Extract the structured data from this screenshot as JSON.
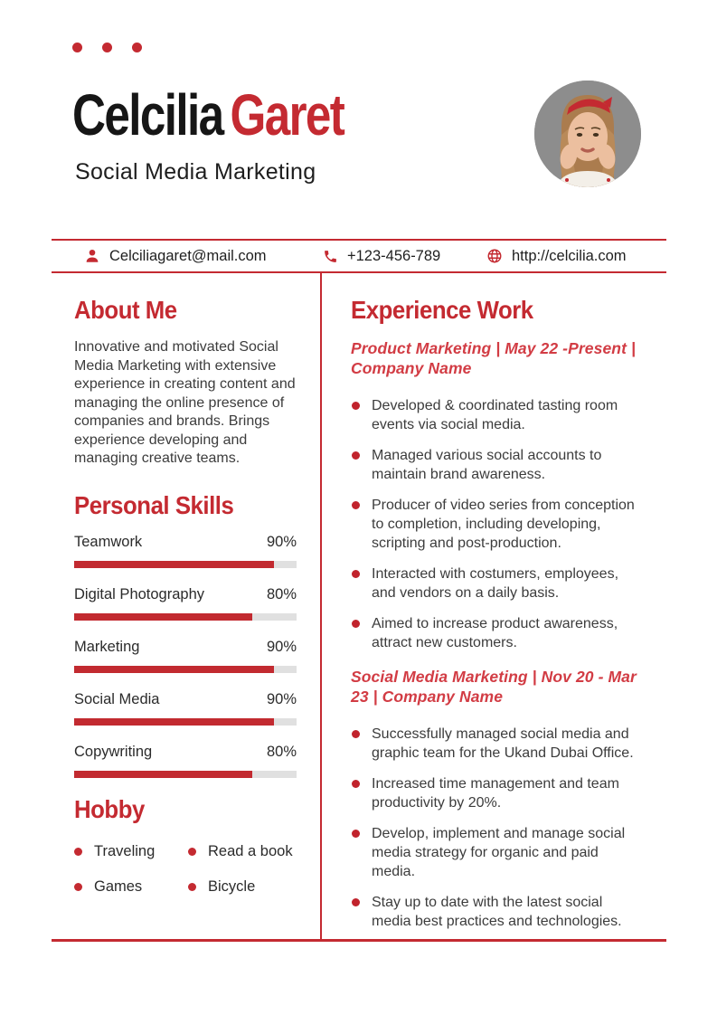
{
  "colors": {
    "accent": "#c42a31",
    "accent_italic": "#d23c44",
    "text_dark": "#1e1e1e",
    "text_body": "#3c3c3c",
    "bar_track": "#e0e0e0",
    "photo_background": "#8d8d8d"
  },
  "header": {
    "first_name": "Celcilia",
    "last_name": "Garet",
    "subtitle": "Social Media Marketing"
  },
  "contact": {
    "email": "Celciliagaret@mail.com",
    "phone": "+123-456-789",
    "website": "http://celcilia.com"
  },
  "about": {
    "title": "About Me",
    "text": "Innovative and motivated Social Media Marketing with extensive experience in creating content and managing the online presence of companies and brands. Brings experience developing and managing creative teams."
  },
  "skills": {
    "title": "Personal Skills",
    "items": [
      {
        "label": "Teamwork",
        "value": 90,
        "percent_label": "90%"
      },
      {
        "label": "Digital Photography",
        "value": 80,
        "percent_label": "80%"
      },
      {
        "label": "Marketing",
        "value": 90,
        "percent_label": "90%"
      },
      {
        "label": "Social Media",
        "value": 90,
        "percent_label": "90%"
      },
      {
        "label": "Copywriting",
        "value": 80,
        "percent_label": "80%"
      }
    ]
  },
  "hobby": {
    "title": "Hobby",
    "items": [
      "Traveling",
      "Read a book",
      "Games",
      "Bicycle"
    ]
  },
  "experience": {
    "title": "Experience Work",
    "jobs": [
      {
        "heading": "Product Marketing | May 22 -Present | Company Name",
        "bullets": [
          "Developed & coordinated tasting room events via social media.",
          "Managed various social accounts to maintain brand awareness.",
          "Producer of video series from conception to completion, including developing, scripting and post-production.",
          "Interacted with costumers, employees, and vendors on a daily basis.",
          "Aimed to increase product awareness, attract new customers."
        ]
      },
      {
        "heading": "Social Media Marketing | Nov 20 - Mar 23 | Company Name",
        "bullets": [
          "Successfully managed social media and graphic team for the Ukand Dubai Office.",
          "Increased time management and team productivity by 20%.",
          "Develop, implement and manage social media strategy for organic and paid media.",
          "Stay up to date with the latest social media best practices and technologies."
        ]
      }
    ]
  }
}
